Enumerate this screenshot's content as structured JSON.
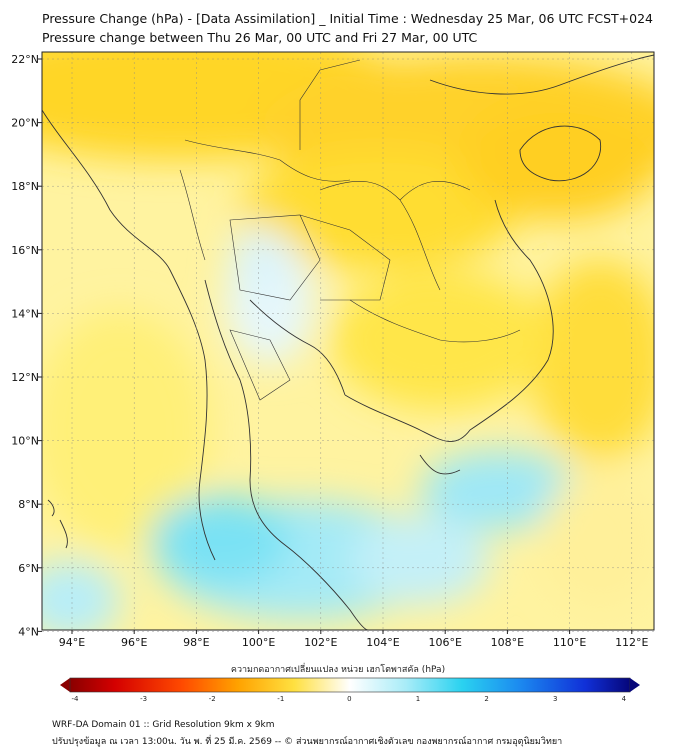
{
  "title_line1": "Pressure Change (hPa) - [Data Assimilation] _ Initial Time : Wednesday 25 Mar, 06 UTC FCST+024",
  "title_line2": "Pressure change between Thu 26 Mar, 00 UTC and Fri 27 Mar, 00 UTC",
  "lon_ticks": [
    "94°E",
    "96°E",
    "98°E",
    "100°E",
    "102°E",
    "104°E",
    "106°E",
    "108°E",
    "110°E",
    "112°E"
  ],
  "lat_ticks": [
    "22°N",
    "20°N",
    "18°N",
    "16°N",
    "14°N",
    "12°N",
    "10°N",
    "8°N",
    "6°N",
    "4°N"
  ],
  "colorbar": {
    "label": "ความกดอากาศเปลี่ยนแปลง หน่วย เฮกโตพาสคัล (hPa)",
    "ticks": [
      "-4",
      "-3",
      "-2",
      "-1",
      "0",
      "1",
      "2",
      "3",
      "4"
    ]
  },
  "footer": {
    "line1": "WRF-DA Domain 01 :: Grid Resolution 9km x 9km",
    "line2": "ปรับปรุงข้อมูล ณ เวลา 13:00น. วัน พ. ที่ 25 มี.ค. 2569 -- © ส่วนพยากรณ์อากาศเชิงตัวเลข กองพยากรณ์อากาศ กรมอุตุนิยมวิทยา"
  },
  "colors": {
    "strong_yellow": "#ffd21e",
    "yellow": "#ffe84a",
    "pale_yellow": "#fff6a8",
    "cyan": "#6fe0f4",
    "pale_cyan": "#dff6fb"
  }
}
